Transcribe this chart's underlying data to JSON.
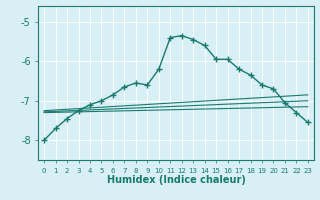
{
  "title": "",
  "xlabel": "Humidex (Indice chaleur)",
  "bg_color": "#d7eff5",
  "grid_color": "#ffffff",
  "line_color": "#1a7a6e",
  "x_ticks": [
    0,
    1,
    2,
    3,
    4,
    5,
    6,
    7,
    8,
    9,
    10,
    11,
    12,
    13,
    14,
    15,
    16,
    17,
    18,
    19,
    20,
    21,
    22,
    23
  ],
  "ylim": [
    -8.5,
    -4.6
  ],
  "xlim": [
    -0.5,
    23.5
  ],
  "yticks": [
    -8,
    -7,
    -6,
    -5
  ],
  "series1_x": [
    0,
    1,
    2,
    3,
    4,
    5,
    6,
    7,
    8,
    9,
    10,
    11,
    12,
    13,
    14,
    15,
    16,
    17,
    18,
    19,
    20,
    21,
    22,
    23
  ],
  "series1_y": [
    -8.0,
    -7.7,
    -7.45,
    -7.25,
    -7.1,
    -7.0,
    -6.85,
    -6.65,
    -6.55,
    -6.6,
    -6.2,
    -5.4,
    -5.35,
    -5.45,
    -5.6,
    -5.95,
    -5.95,
    -6.2,
    -6.35,
    -6.6,
    -6.7,
    -7.05,
    -7.3,
    -7.55
  ],
  "series2_x": [
    0,
    23
  ],
  "series2_y": [
    -7.25,
    -6.85
  ],
  "series3_x": [
    0,
    23
  ],
  "series3_y": [
    -7.28,
    -7.0
  ],
  "series4_x": [
    0,
    23
  ],
  "series4_y": [
    -7.3,
    -7.15
  ]
}
